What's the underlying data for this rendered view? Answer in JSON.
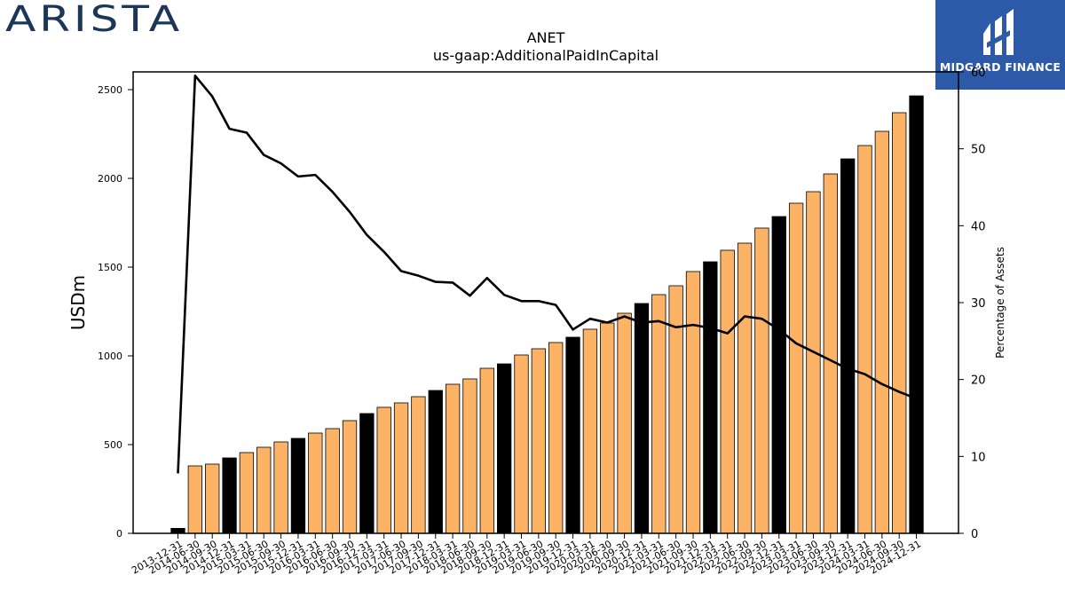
{
  "logos": {
    "left_text": "ARISTA",
    "right_text": "MIDGARD FINANCE"
  },
  "chart_data": {
    "type": "bar",
    "title": "ANET",
    "subtitle": "us-gaap:AdditionalPaidInCapital",
    "ylabel": "USDm",
    "y2label": "Percentage of Assets",
    "ylim": [
      0,
      2600
    ],
    "y2lim": [
      0,
      60
    ],
    "yticks": [
      0,
      500,
      1000,
      1500,
      2000,
      2500
    ],
    "y2ticks": [
      0,
      10,
      20,
      30,
      40,
      50,
      60
    ],
    "grid": false,
    "colors": {
      "bar": "#fdb366",
      "bar_year_end": "#000000",
      "line": "#000000"
    },
    "categories": [
      "2013-12-31",
      "2014-06-30",
      "2014-09-30",
      "2014-12-31",
      "2015-03-31",
      "2015-06-30",
      "2015-09-30",
      "2015-12-31",
      "2016-03-31",
      "2016-06-30",
      "2016-09-30",
      "2016-12-31",
      "2017-03-31",
      "2017-06-30",
      "2017-09-30",
      "2017-12-31",
      "2018-03-31",
      "2018-06-30",
      "2018-09-30",
      "2018-12-31",
      "2019-03-31",
      "2019-06-30",
      "2019-09-30",
      "2019-12-31",
      "2020-03-31",
      "2020-06-30",
      "2020-09-30",
      "2020-12-31",
      "2021-03-31",
      "2021-06-30",
      "2021-09-30",
      "2021-12-31",
      "2022-03-31",
      "2022-06-30",
      "2022-09-30",
      "2022-12-31",
      "2023-03-31",
      "2023-06-30",
      "2023-09-30",
      "2023-12-31",
      "2024-03-31",
      "2024-06-30",
      "2024-09-30",
      "2024-12-31"
    ],
    "series": [
      {
        "kind": "bar",
        "values": [
          28,
          380,
          390,
          425,
          455,
          485,
          515,
          535,
          565,
          590,
          635,
          675,
          710,
          735,
          770,
          805,
          840,
          870,
          930,
          955,
          1005,
          1040,
          1075,
          1105,
          1150,
          1185,
          1240,
          1295,
          1345,
          1395,
          1475,
          1530,
          1595,
          1635,
          1720,
          1785,
          1860,
          1925,
          2025,
          2110,
          2185,
          2265,
          2370,
          2465
        ]
      },
      {
        "kind": "line",
        "axis": "right",
        "values": [
          7.8,
          59.5,
          56.8,
          52.6,
          52.1,
          49.2,
          48.1,
          46.4,
          46.6,
          44.4,
          41.8,
          38.8,
          36.6,
          34.1,
          33.5,
          32.7,
          32.6,
          30.9,
          33.2,
          31.0,
          30.2,
          30.2,
          29.7,
          26.5,
          27.9,
          27.4,
          28.2,
          27.4,
          27.6,
          26.8,
          27.1,
          26.7,
          26.0,
          28.2,
          27.9,
          26.5,
          24.7,
          23.6,
          22.5,
          21.4,
          20.7,
          19.4,
          18.4,
          17.5
        ]
      }
    ]
  }
}
